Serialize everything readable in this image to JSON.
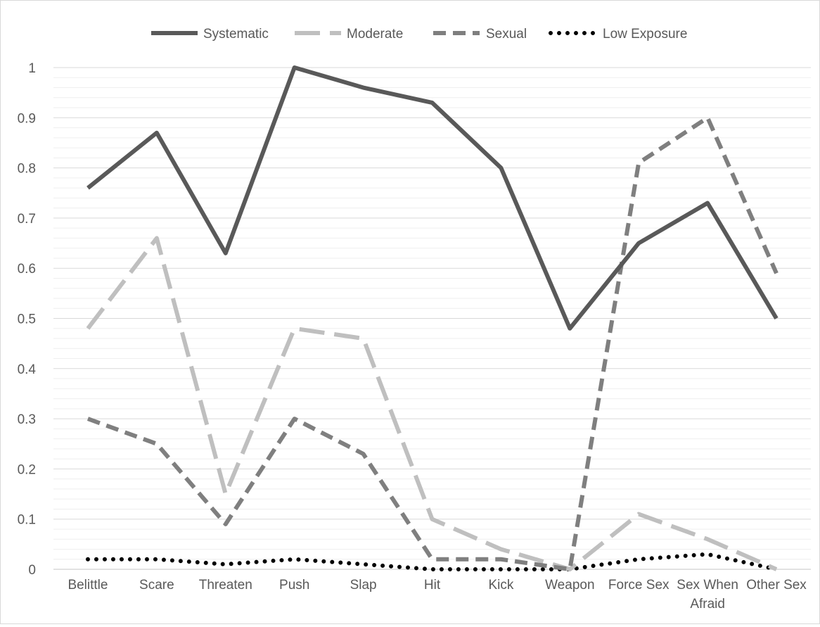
{
  "chart_data": {
    "type": "line",
    "title": "",
    "xlabel": "",
    "ylabel": "",
    "ylim": [
      0,
      1
    ],
    "yticks": [
      0,
      0.1,
      0.2,
      0.3,
      0.4,
      0.5,
      0.6,
      0.7,
      0.8,
      0.9,
      1
    ],
    "ytick_labels": [
      "0",
      "0.1",
      "0.2",
      "0.3",
      "0.4",
      "0.5",
      "0.6",
      "0.7",
      "0.8",
      "0.9",
      "1"
    ],
    "grid": true,
    "legend_position": "top",
    "categories": [
      [
        "Belittle"
      ],
      [
        "Scare"
      ],
      [
        "Threaten"
      ],
      [
        "Push"
      ],
      [
        "Slap"
      ],
      [
        "Hit"
      ],
      [
        "Kick"
      ],
      [
        "Weapon"
      ],
      [
        "Force Sex"
      ],
      [
        "Sex When",
        "Afraid"
      ],
      [
        "Other Sex"
      ]
    ],
    "series": [
      {
        "name": "Systematic",
        "style": "solid",
        "color": "#595959",
        "values": [
          0.76,
          0.87,
          0.63,
          1.0,
          0.96,
          0.93,
          0.8,
          0.48,
          0.65,
          0.73,
          0.5
        ]
      },
      {
        "name": "Moderate",
        "style": "long-dash",
        "color": "#bfbfbf",
        "values": [
          0.48,
          0.66,
          0.15,
          0.48,
          0.46,
          0.1,
          0.04,
          0.0,
          0.11,
          0.06,
          0.0
        ]
      },
      {
        "name": "Sexual",
        "style": "dash",
        "color": "#7f7f7f",
        "values": [
          0.3,
          0.25,
          0.09,
          0.3,
          0.23,
          0.02,
          0.02,
          0.0,
          0.81,
          0.9,
          0.59
        ]
      },
      {
        "name": "Low Exposure",
        "style": "dot",
        "color": "#000000",
        "values": [
          0.02,
          0.02,
          0.01,
          0.02,
          0.01,
          0.0,
          0.0,
          0.0,
          0.02,
          0.03,
          0.0
        ]
      }
    ]
  }
}
